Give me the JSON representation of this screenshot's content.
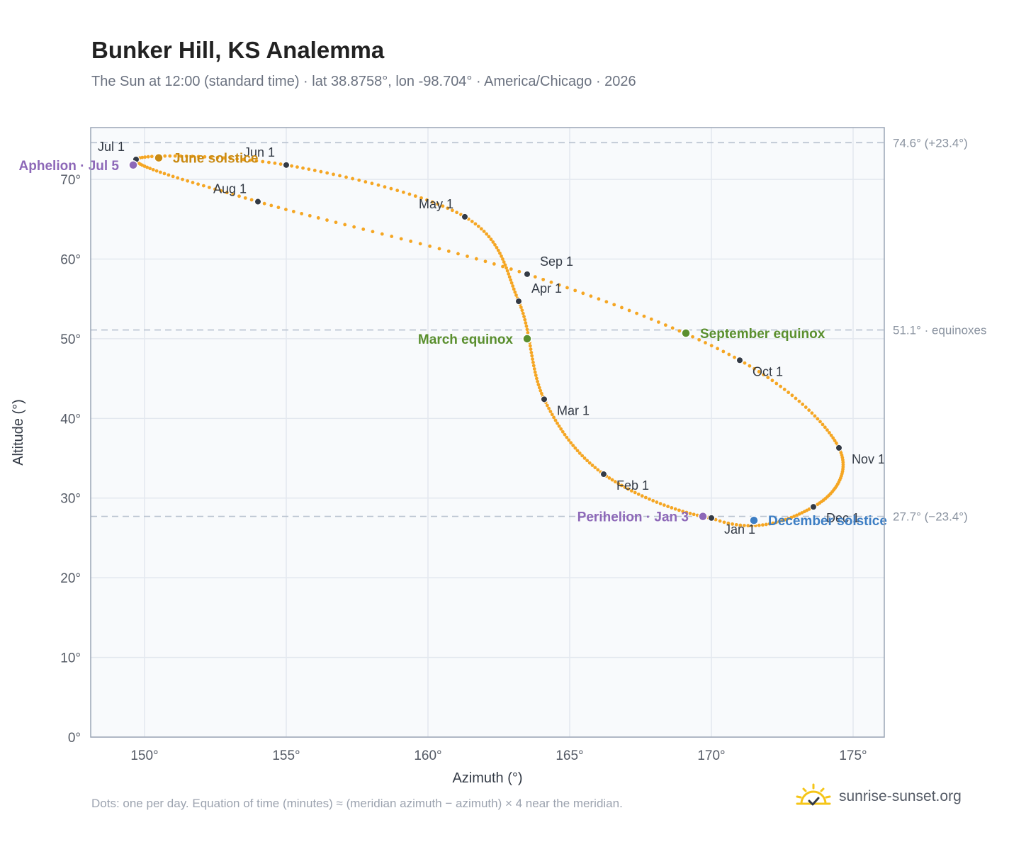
{
  "title": "Bunker Hill, KS Analemma",
  "subtitle": "The Sun at 12:00 (standard time) · lat 38.8758°, lon -98.704° · America/Chicago · 2026",
  "footnote": "Dots: one per day. Equation of time (minutes) ≈ (meridian azimuth − azimuth) × 4 near the meridian.",
  "brand": "sunrise-sunset.org",
  "colors": {
    "curve": "#f5a623",
    "month_marker": "#333a45",
    "june_solstice": "#c98a12",
    "december_solstice": "#3d7ec4",
    "equinox": "#5a8f2e",
    "aphelion_perihelion": "#8d68b8",
    "reference_line": "#b8c2cf",
    "grid": "#e3e8ef",
    "plot_bg": "#f8fafc",
    "axis_border": "#9aa5b5",
    "tick_text": "#555b66",
    "brand_sun": "#f5c518"
  },
  "chart_data": {
    "type": "scatter",
    "xlabel": "Azimuth (°)",
    "ylabel": "Altitude (°)",
    "xlim": [
      148.1,
      176.1
    ],
    "ylim": [
      0,
      76.5
    ],
    "xticks": [
      150,
      155,
      160,
      165,
      170,
      175
    ],
    "yticks": [
      0,
      10,
      20,
      30,
      40,
      50,
      60,
      70
    ],
    "tick_suffix": "°",
    "grid": true,
    "reference_lines": [
      {
        "y": 74.6,
        "label": "74.6° (+23.4°)"
      },
      {
        "y": 51.1,
        "label": "51.1° · equinoxes"
      },
      {
        "y": 27.7,
        "label": "27.7° (−23.4°)"
      }
    ],
    "month_markers": [
      {
        "label": "Jan 1",
        "azimuth": 170.0,
        "altitude": 27.5,
        "label_pos": "below-right"
      },
      {
        "label": "Feb 1",
        "azimuth": 166.2,
        "altitude": 33.0,
        "label_pos": "below-right"
      },
      {
        "label": "Mar 1",
        "azimuth": 164.1,
        "altitude": 42.4,
        "label_pos": "below-right"
      },
      {
        "label": "Apr 1",
        "azimuth": 163.2,
        "altitude": 54.7,
        "label_pos": "above-right"
      },
      {
        "label": "May 1",
        "azimuth": 161.3,
        "altitude": 65.3,
        "label_pos": "above-left"
      },
      {
        "label": "Jun 1",
        "azimuth": 155.0,
        "altitude": 71.8,
        "label_pos": "above-left"
      },
      {
        "label": "Jul 1",
        "azimuth": 149.7,
        "altitude": 72.5,
        "label_pos": "above-left"
      },
      {
        "label": "Aug 1",
        "azimuth": 154.0,
        "altitude": 67.2,
        "label_pos": "above-left"
      },
      {
        "label": "Sep 1",
        "azimuth": 163.5,
        "altitude": 58.1,
        "label_pos": "above-right"
      },
      {
        "label": "Oct 1",
        "azimuth": 171.0,
        "altitude": 47.3,
        "label_pos": "below-right"
      },
      {
        "label": "Nov 1",
        "azimuth": 174.5,
        "altitude": 36.3,
        "label_pos": "below-right"
      },
      {
        "label": "Dec 1",
        "azimuth": 173.6,
        "altitude": 28.9,
        "label_pos": "below-right"
      }
    ],
    "events": [
      {
        "label": "June solstice",
        "azimuth": 150.5,
        "altitude": 72.7,
        "color_key": "june_solstice",
        "label_pos": "right"
      },
      {
        "label": "Aphelion · Jul 5",
        "azimuth": 149.6,
        "altitude": 71.8,
        "color_key": "aphelion_perihelion",
        "label_pos": "left"
      },
      {
        "label": "March equinox",
        "azimuth": 163.5,
        "altitude": 50.0,
        "color_key": "equinox",
        "label_pos": "left"
      },
      {
        "label": "September equinox",
        "azimuth": 169.1,
        "altitude": 50.7,
        "color_key": "equinox",
        "label_pos": "right"
      },
      {
        "label": "Perihelion · Jan 3",
        "azimuth": 169.7,
        "altitude": 27.7,
        "color_key": "aphelion_perihelion",
        "label_pos": "left"
      },
      {
        "label": "December solstice",
        "azimuth": 171.5,
        "altitude": 27.2,
        "color_key": "december_solstice",
        "label_pos": "right"
      }
    ]
  }
}
